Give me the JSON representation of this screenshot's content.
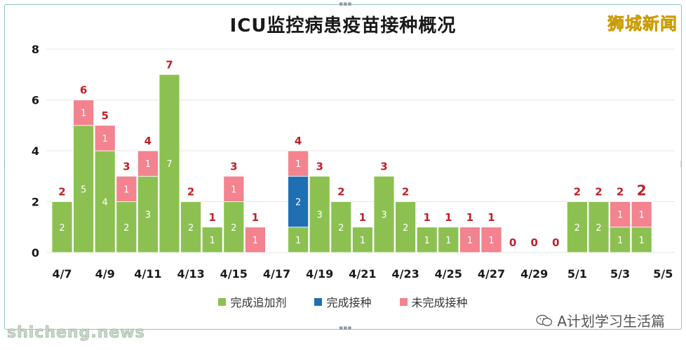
{
  "chart_data": {
    "type": "bar",
    "stacked": true,
    "title": "ICU监控病患疫苗接种概况",
    "categories": [
      "4/7",
      "4/8",
      "4/9",
      "4/10",
      "4/11",
      "4/12",
      "4/13",
      "4/14",
      "4/15",
      "4/16",
      "4/17",
      "4/18",
      "4/19",
      "4/20",
      "4/21",
      "4/22",
      "4/23",
      "4/24",
      "4/25",
      "4/26",
      "4/27",
      "4/28",
      "4/29",
      "4/30",
      "5/1",
      "5/2",
      "5/3",
      "5/4",
      "5/5"
    ],
    "x_tick_labels": [
      "4/7",
      "4/9",
      "4/11",
      "4/13",
      "4/15",
      "4/17",
      "4/19",
      "4/21",
      "4/23",
      "4/25",
      "4/27",
      "4/29",
      "5/1",
      "5/3",
      "5/5"
    ],
    "series": [
      {
        "name": "完成追加剂",
        "color": "#8cc152",
        "values": [
          2,
          5,
          4,
          2,
          3,
          7,
          2,
          1,
          2,
          0,
          null,
          1,
          3,
          2,
          1,
          3,
          2,
          1,
          1,
          0,
          0,
          0,
          0,
          0,
          2,
          2,
          1,
          1,
          null
        ]
      },
      {
        "name": "完成接种",
        "color": "#1f6fb5",
        "values": [
          0,
          0,
          0,
          0,
          0,
          0,
          0,
          0,
          0,
          0,
          null,
          2,
          0,
          0,
          0,
          0,
          0,
          0,
          0,
          0,
          0,
          0,
          0,
          0,
          0,
          0,
          0,
          0,
          null
        ]
      },
      {
        "name": "未完成接种",
        "color": "#f2838f",
        "values": [
          0,
          1,
          1,
          1,
          1,
          0,
          0,
          0,
          1,
          1,
          null,
          1,
          0,
          0,
          0,
          0,
          0,
          0,
          0,
          1,
          1,
          0,
          0,
          0,
          0,
          0,
          1,
          1,
          null
        ]
      }
    ],
    "totals": [
      2,
      6,
      5,
      3,
      4,
      7,
      2,
      1,
      3,
      1,
      null,
      4,
      3,
      2,
      1,
      3,
      2,
      1,
      1,
      1,
      1,
      0,
      0,
      0,
      2,
      2,
      2,
      2,
      null
    ],
    "ylim": [
      0,
      8
    ],
    "y_ticks": [
      0,
      2,
      4,
      6,
      8
    ],
    "grid": true,
    "legend_position": "bottom"
  },
  "brand": "狮城新闻",
  "watermark_left": "shicheng.news",
  "watermark_right": "A计划学习生活篇",
  "colors": {
    "total_label": "#c0202a",
    "axis_text": "#1a1a1a",
    "grid": "#e6e6e6"
  }
}
